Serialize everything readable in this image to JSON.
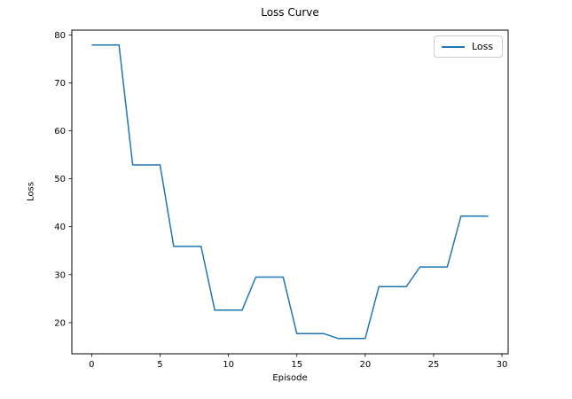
{
  "chart_data": {
    "type": "line",
    "title": "Loss Curve",
    "xlabel": "Episode",
    "ylabel": "Loss",
    "x": [
      0,
      1,
      2,
      3,
      4,
      5,
      6,
      7,
      8,
      9,
      10,
      11,
      12,
      13,
      14,
      15,
      16,
      17,
      18,
      19,
      20,
      21,
      22,
      23,
      24,
      25,
      26,
      27,
      28,
      29
    ],
    "series": [
      {
        "name": "Loss",
        "color": "#1f77b4",
        "values": [
          77.9,
          77.9,
          77.9,
          52.9,
          52.9,
          52.9,
          35.9,
          35.9,
          35.9,
          22.6,
          22.6,
          22.6,
          29.5,
          29.5,
          29.5,
          17.7,
          17.7,
          17.7,
          16.7,
          16.7,
          16.7,
          27.5,
          27.5,
          27.5,
          31.6,
          31.6,
          31.6,
          42.2,
          42.2,
          42.2
        ]
      }
    ],
    "xlim": [
      -1.45,
      30.45
    ],
    "ylim": [
      13.5,
      81.0
    ],
    "xticks": [
      0,
      5,
      10,
      15,
      20,
      25,
      30
    ],
    "yticks": [
      20,
      30,
      40,
      50,
      60,
      70,
      80
    ],
    "grid": false,
    "legend": {
      "position": "upper right",
      "label": "Loss"
    },
    "axis_color": "#000000",
    "tick_label_color": "#000000"
  }
}
